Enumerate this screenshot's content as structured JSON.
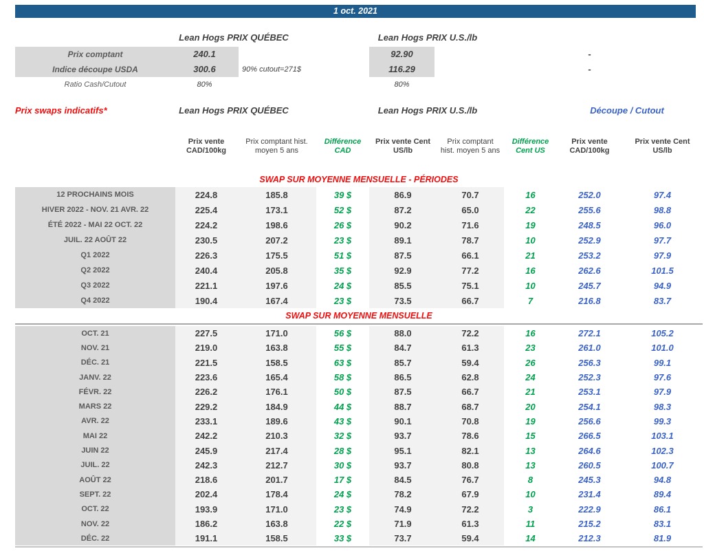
{
  "banner": "1 oct. 2021",
  "colors": {
    "banner_bg": "#1F5C8E",
    "red_accent": "#EE0E0E",
    "green_diff": "#00A14E",
    "blue_cutout": "#3A62C6",
    "text_dark": "#404040",
    "text_label": "#595959",
    "bg_label_col": "#D9D9D9",
    "bg_value_col": "#F2F2F2"
  },
  "spot": {
    "qc_header": "Lean Hogs PRIX QUÉBEC",
    "us_header": "Lean Hogs PRIX U.S./lb",
    "rows": [
      {
        "label": "Prix comptant",
        "qc": "240.1",
        "note": "",
        "us": "92.90",
        "dash": "-"
      },
      {
        "label": "Indice découpe USDA",
        "qc": "300.6",
        "note": "90% cutout=271$",
        "us": "116.29",
        "dash": "-"
      },
      {
        "label": "Ratio Cash/Cutout",
        "qc": "80%",
        "note": "",
        "us": "80%",
        "dash": ""
      }
    ]
  },
  "swaps": {
    "title": "Prix swaps indicatifs*",
    "qc_header": "Lean Hogs PRIX QUÉBEC",
    "us_header": "Lean Hogs PRIX U.S./lb",
    "cutout_header": "Découpe / Cutout",
    "columns": [
      "Prix vente CAD/100kg",
      "Prix comptant hist. moyen 5 ans",
      "Différence CAD",
      "Prix vente Cent US/lb",
      "Prix comptant hist. moyen 5 ans",
      "Différence Cent US",
      "Prix vente CAD/100kg",
      "Prix vente Cent US/lb"
    ],
    "sections": [
      {
        "title": "SWAP SUR MOYENNE MENSUELLE - PÉRIODES",
        "rows": [
          {
            "label": "12 PROCHAINS MOIS",
            "values": [
              "224.8",
              "185.8",
              "39 $",
              "86.9",
              "70.7",
              "16",
              "252.0",
              "97.4"
            ]
          },
          {
            "label": "HIVER 2022 - NOV. 21 AVR. 22",
            "values": [
              "225.4",
              "173.1",
              "52 $",
              "87.2",
              "65.0",
              "22",
              "255.6",
              "98.8"
            ]
          },
          {
            "label": "ÉTÉ 2022 - MAI 22 OCT. 22",
            "values": [
              "224.2",
              "198.6",
              "26 $",
              "90.2",
              "71.6",
              "19",
              "248.5",
              "96.0"
            ]
          },
          {
            "label": "JUIL. 22 AOÛT 22",
            "values": [
              "230.5",
              "207.2",
              "23 $",
              "89.1",
              "78.7",
              "10",
              "252.9",
              "97.7"
            ]
          },
          {
            "label": "Q1 2022",
            "values": [
              "226.3",
              "175.5",
              "51 $",
              "87.5",
              "66.1",
              "21",
              "253.2",
              "97.9"
            ]
          },
          {
            "label": "Q2 2022",
            "values": [
              "240.4",
              "205.8",
              "35 $",
              "92.9",
              "77.2",
              "16",
              "262.6",
              "101.5"
            ]
          },
          {
            "label": "Q3 2022",
            "values": [
              "221.1",
              "197.6",
              "24 $",
              "85.5",
              "75.1",
              "10",
              "245.7",
              "94.9"
            ]
          },
          {
            "label": "Q4 2022",
            "values": [
              "190.4",
              "167.4",
              "23 $",
              "73.5",
              "66.7",
              "7",
              "216.8",
              "83.7"
            ]
          }
        ]
      },
      {
        "title": "SWAP SUR MOYENNE MENSUELLE",
        "rows": [
          {
            "label": "OCT. 21",
            "values": [
              "227.5",
              "171.0",
              "56 $",
              "88.0",
              "72.2",
              "16",
              "272.1",
              "105.2"
            ]
          },
          {
            "label": "NOV. 21",
            "values": [
              "219.0",
              "163.8",
              "55 $",
              "84.7",
              "61.3",
              "23",
              "261.0",
              "101.0"
            ]
          },
          {
            "label": "DÉC. 21",
            "values": [
              "221.5",
              "158.5",
              "63 $",
              "85.7",
              "59.4",
              "26",
              "256.3",
              "99.1"
            ]
          },
          {
            "label": "JANV. 22",
            "values": [
              "223.6",
              "165.4",
              "58 $",
              "86.5",
              "62.8",
              "24",
              "252.3",
              "97.6"
            ]
          },
          {
            "label": "FÉVR. 22",
            "values": [
              "226.2",
              "176.1",
              "50 $",
              "87.5",
              "66.7",
              "21",
              "253.1",
              "97.9"
            ]
          },
          {
            "label": "MARS 22",
            "values": [
              "229.2",
              "184.9",
              "44 $",
              "88.7",
              "68.7",
              "20",
              "254.1",
              "98.3"
            ]
          },
          {
            "label": "AVR. 22",
            "values": [
              "233.1",
              "189.6",
              "43 $",
              "90.1",
              "70.8",
              "19",
              "256.6",
              "99.3"
            ]
          },
          {
            "label": "MAI 22",
            "values": [
              "242.2",
              "210.3",
              "32 $",
              "93.7",
              "78.6",
              "15",
              "266.5",
              "103.1"
            ]
          },
          {
            "label": "JUIN 22",
            "values": [
              "245.9",
              "217.4",
              "28 $",
              "95.1",
              "82.1",
              "13",
              "264.6",
              "102.3"
            ]
          },
          {
            "label": "JUIL. 22",
            "values": [
              "242.3",
              "212.7",
              "30 $",
              "93.7",
              "80.8",
              "13",
              "260.5",
              "100.7"
            ]
          },
          {
            "label": "AOÛT 22",
            "values": [
              "218.6",
              "201.7",
              "17 $",
              "84.5",
              "76.7",
              "8",
              "245.3",
              "94.8"
            ]
          },
          {
            "label": "SEPT. 22",
            "values": [
              "202.4",
              "178.4",
              "24 $",
              "78.2",
              "67.9",
              "10",
              "231.4",
              "89.4"
            ]
          },
          {
            "label": "OCT. 22",
            "values": [
              "193.9",
              "171.0",
              "23 $",
              "74.9",
              "72.2",
              "3",
              "222.9",
              "86.1"
            ]
          },
          {
            "label": "NOV. 22",
            "values": [
              "186.2",
              "163.8",
              "22 $",
              "71.9",
              "61.3",
              "11",
              "215.2",
              "83.1"
            ]
          },
          {
            "label": "DÉC. 22",
            "values": [
              "191.1",
              "158.5",
              "33 $",
              "73.7",
              "59.4",
              "14",
              "212.3",
              "81.9"
            ]
          }
        ]
      }
    ]
  }
}
